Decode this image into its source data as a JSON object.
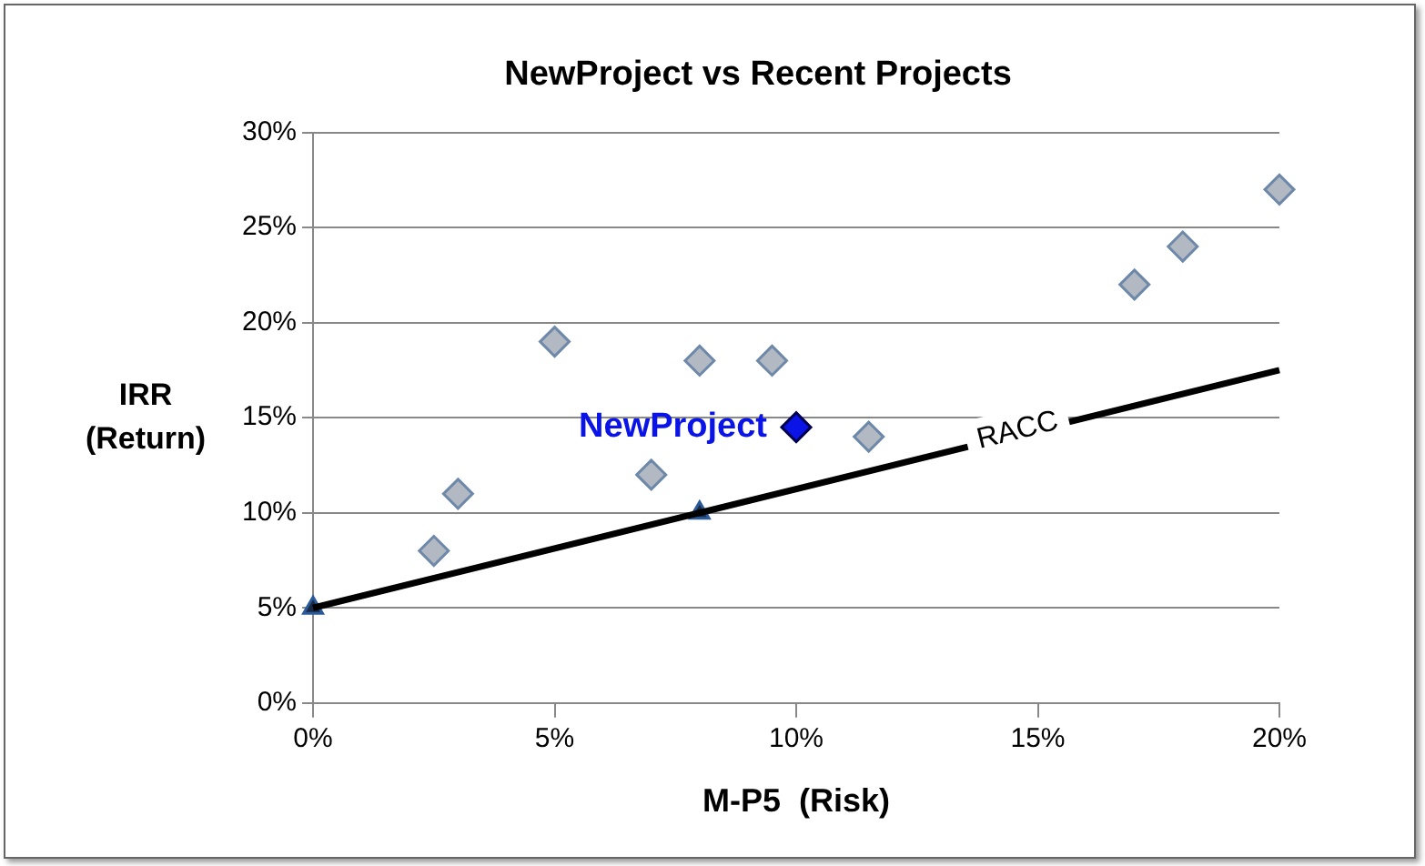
{
  "chart_data": {
    "type": "scatter",
    "title": "NewProject vs Recent Projects",
    "xlabel": "M-P5  (Risk)",
    "ylabel": "IRR\n(Return)",
    "xlim": [
      0,
      20
    ],
    "xticks": [
      {
        "value": 0,
        "label": "0%"
      },
      {
        "value": 5,
        "label": "5%"
      },
      {
        "value": 10,
        "label": "10%"
      },
      {
        "value": 15,
        "label": "15%"
      },
      {
        "value": 20,
        "label": "20%"
      }
    ],
    "ylim": [
      0,
      30
    ],
    "yticks": [
      {
        "value": 0,
        "label": "0%"
      },
      {
        "value": 5,
        "label": "5%"
      },
      {
        "value": 10,
        "label": "10%"
      },
      {
        "value": 15,
        "label": "15%"
      },
      {
        "value": 20,
        "label": "20%"
      },
      {
        "value": 25,
        "label": "25%"
      },
      {
        "value": 30,
        "label": "30%"
      }
    ],
    "grid": "y",
    "legend": false,
    "marker": "diamond",
    "series": [
      {
        "type": "scatter",
        "color": "#b3b9c3",
        "x": [
          2.5,
          3,
          5,
          7,
          8,
          9.5,
          11.5,
          17,
          18,
          20
        ],
        "values": [
          8,
          11,
          19,
          12,
          18,
          18,
          14,
          22,
          24,
          27
        ]
      },
      {
        "type": "scatter",
        "name": "NewProject",
        "color": "#0a14e6",
        "x": [
          10
        ],
        "values": [
          14.5
        ]
      },
      {
        "type": "line",
        "name": "RACC",
        "color": "#000000",
        "marker": "none",
        "line_style": "solid",
        "x": [
          0,
          8,
          20
        ],
        "values": [
          5,
          10,
          17.5
        ]
      },
      {
        "type": "scatter",
        "color": "#1b2a44",
        "marker": "triangle",
        "x": [
          0,
          8
        ],
        "values": [
          5,
          10
        ]
      }
    ]
  }
}
